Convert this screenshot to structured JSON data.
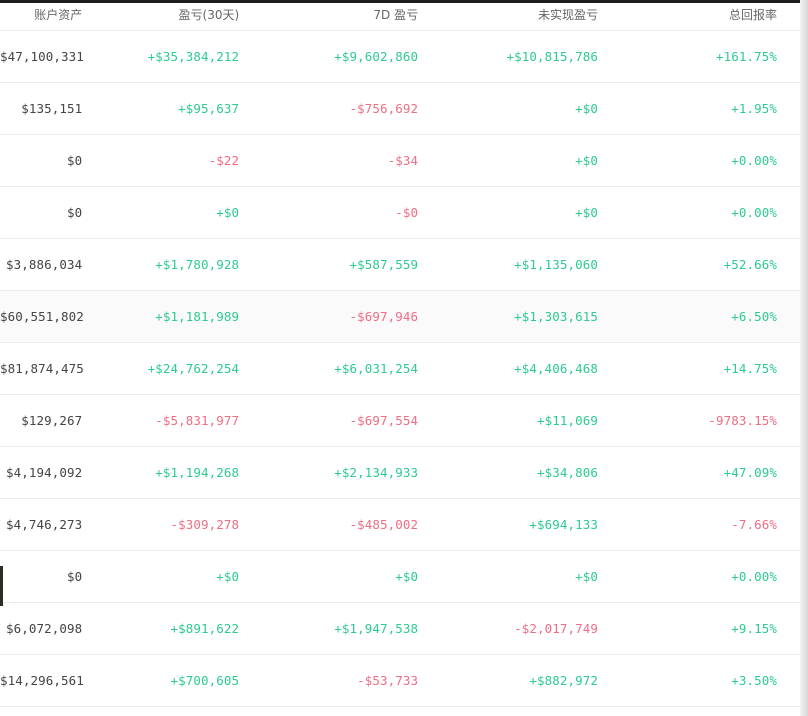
{
  "columns": {
    "account_assets": "账户资产",
    "pnl_30d": "盈亏(30天)",
    "pnl_7d": "7D 盈亏",
    "unrealized_pnl": "未实现盈亏",
    "total_return": "总回报率"
  },
  "colors": {
    "positive": "#2ecb8f",
    "negative": "#f06d84",
    "neutral_text": "#444444"
  },
  "rows": [
    {
      "assets": "$47,100,331",
      "pnl30": "+$35,384,212",
      "pnl7": "+$9,602,860",
      "unreal": "+$10,815,786",
      "ret": "+161.75%"
    },
    {
      "assets": "$135,151",
      "pnl30": "+$95,637",
      "pnl7": "-$756,692",
      "unreal": "+$0",
      "ret": "+1.95%"
    },
    {
      "assets": "$0",
      "pnl30": "-$22",
      "pnl7": "-$34",
      "unreal": "+$0",
      "ret": "+0.00%"
    },
    {
      "assets": "$0",
      "pnl30": "+$0",
      "pnl7": "-$0",
      "unreal": "+$0",
      "ret": "+0.00%"
    },
    {
      "assets": "$3,886,034",
      "pnl30": "+$1,780,928",
      "pnl7": "+$587,559",
      "unreal": "+$1,135,060",
      "ret": "+52.66%"
    },
    {
      "assets": "$60,551,802",
      "pnl30": "+$1,181,989",
      "pnl7": "-$697,946",
      "unreal": "+$1,303,615",
      "ret": "+6.50%"
    },
    {
      "assets": "$81,874,475",
      "pnl30": "+$24,762,254",
      "pnl7": "+$6,031,254",
      "unreal": "+$4,406,468",
      "ret": "+14.75%"
    },
    {
      "assets": "$129,267",
      "pnl30": "-$5,831,977",
      "pnl7": "-$697,554",
      "unreal": "+$11,069",
      "ret": "-9783.15%"
    },
    {
      "assets": "$4,194,092",
      "pnl30": "+$1,194,268",
      "pnl7": "+$2,134,933",
      "unreal": "+$34,806",
      "ret": "+47.09%"
    },
    {
      "assets": "$4,746,273",
      "pnl30": "-$309,278",
      "pnl7": "-$485,002",
      "unreal": "+$694,133",
      "ret": "-7.66%"
    },
    {
      "assets": "$0",
      "pnl30": "+$0",
      "pnl7": "+$0",
      "unreal": "+$0",
      "ret": "+0.00%"
    },
    {
      "assets": "$6,072,098",
      "pnl30": "+$891,622",
      "pnl7": "+$1,947,538",
      "unreal": "-$2,017,749",
      "ret": "+9.15%"
    },
    {
      "assets": "$14,296,561",
      "pnl30": "+$700,605",
      "pnl7": "-$53,733",
      "unreal": "+$882,972",
      "ret": "+3.50%"
    }
  ]
}
